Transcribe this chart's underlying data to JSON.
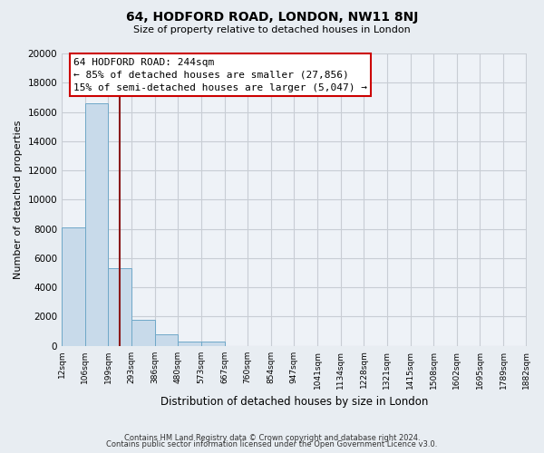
{
  "title": "64, HODFORD ROAD, LONDON, NW11 8NJ",
  "subtitle": "Size of property relative to detached houses in London",
  "xlabel": "Distribution of detached houses by size in London",
  "ylabel": "Number of detached properties",
  "bar_color": "#c8daea",
  "bar_edge_color": "#6fa8c8",
  "property_line_color": "#8b1a1a",
  "property_size": 244,
  "annotation_title": "64 HODFORD ROAD: 244sqm",
  "annotation_line1": "← 85% of detached houses are smaller (27,856)",
  "annotation_line2": "15% of semi-detached houses are larger (5,047) →",
  "bin_edges": [
    12,
    106,
    199,
    293,
    386,
    480,
    573,
    667,
    760,
    854,
    947,
    1041,
    1134,
    1228,
    1321,
    1415,
    1508,
    1602,
    1695,
    1789,
    1882
  ],
  "bin_labels": [
    "12sqm",
    "106sqm",
    "199sqm",
    "293sqm",
    "386sqm",
    "480sqm",
    "573sqm",
    "667sqm",
    "760sqm",
    "854sqm",
    "947sqm",
    "1041sqm",
    "1134sqm",
    "1228sqm",
    "1321sqm",
    "1415sqm",
    "1508sqm",
    "1602sqm",
    "1695sqm",
    "1789sqm",
    "1882sqm"
  ],
  "bar_heights": [
    8100,
    16600,
    5300,
    1800,
    800,
    280,
    280,
    0,
    0,
    0,
    0,
    0,
    0,
    0,
    0,
    0,
    0,
    0,
    0,
    0
  ],
  "ylim": [
    0,
    20000
  ],
  "yticks": [
    0,
    2000,
    4000,
    6000,
    8000,
    10000,
    12000,
    14000,
    16000,
    18000,
    20000
  ],
  "footer_line1": "Contains HM Land Registry data © Crown copyright and database right 2024.",
  "footer_line2": "Contains public sector information licensed under the Open Government Licence v3.0.",
  "bg_color": "#e8edf2",
  "plot_bg_color": "#eef2f7",
  "grid_color": "#c8cdd4"
}
